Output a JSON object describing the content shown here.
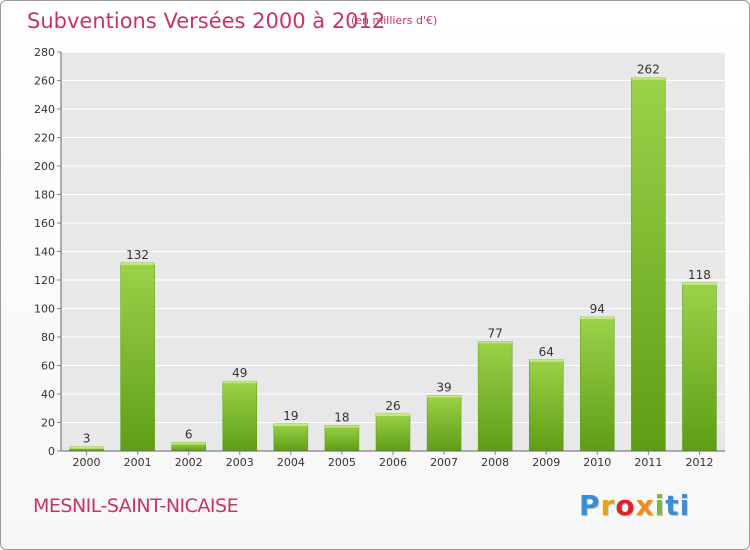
{
  "header": {
    "title": "Subventions Versées 2000 à 2012",
    "unit": "(en milliers d'€)"
  },
  "footer": {
    "commune": "MESNIL-SAINT-NICAISE",
    "logo": "Proxiti"
  },
  "colors": {
    "accent": "#c8336a",
    "bar_top": "#9bd24a",
    "bar_bottom": "#5e9e14",
    "plot_bg": "#e8e8e8"
  },
  "chart_data": {
    "type": "bar",
    "categories": [
      "2000",
      "2001",
      "2002",
      "2003",
      "2004",
      "2005",
      "2006",
      "2007",
      "2008",
      "2009",
      "2010",
      "2011",
      "2012"
    ],
    "values": [
      3,
      132,
      6,
      49,
      19,
      18,
      26,
      39,
      77,
      64,
      94,
      262,
      118
    ],
    "ylim": [
      0,
      280
    ],
    "yticks": [
      0,
      20,
      40,
      60,
      80,
      100,
      120,
      140,
      160,
      180,
      200,
      220,
      240,
      260,
      280
    ],
    "grid": true,
    "legend": "none"
  }
}
